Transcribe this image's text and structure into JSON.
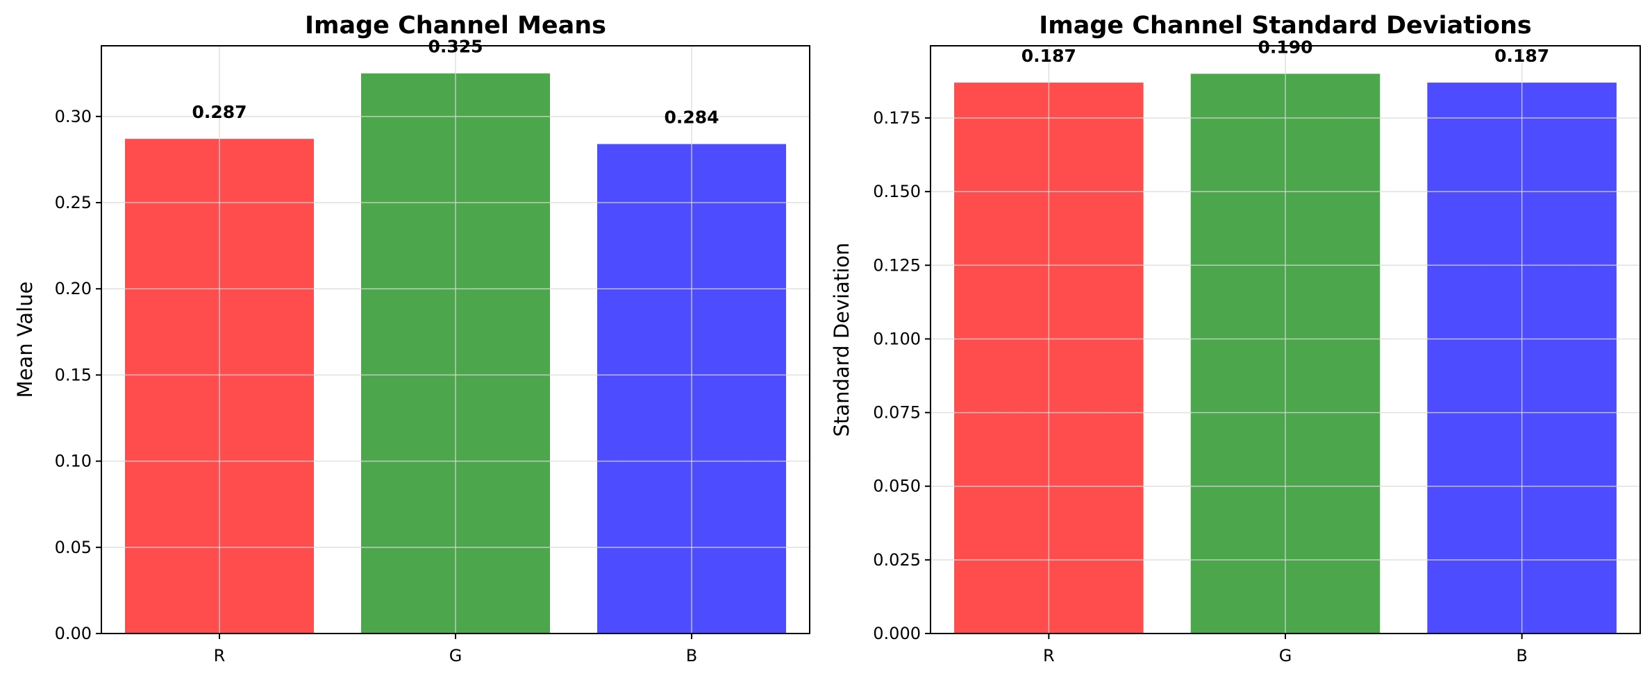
{
  "chart_data": [
    {
      "type": "bar",
      "title": "Image Channel Means",
      "xlabel": "",
      "ylabel": "Mean Value",
      "categories": [
        "R",
        "G",
        "B"
      ],
      "values": [
        0.287,
        0.325,
        0.284
      ],
      "value_labels": [
        "0.287",
        "0.325",
        "0.284"
      ],
      "colors": [
        "#ff4d4d",
        "#4ca64c",
        "#4d4dff"
      ],
      "ylim": [
        0,
        0.341
      ],
      "yticks": [
        0,
        0.05,
        0.1,
        0.15,
        0.2,
        0.25,
        0.3
      ],
      "ytick_labels": [
        "0.00",
        "0.05",
        "0.10",
        "0.15",
        "0.20",
        "0.25",
        "0.30"
      ],
      "grid": true
    },
    {
      "type": "bar",
      "title": "Image Channel Standard Deviations",
      "xlabel": "",
      "ylabel": "Standard Deviation",
      "categories": [
        "R",
        "G",
        "B"
      ],
      "values": [
        0.187,
        0.19,
        0.187
      ],
      "value_labels": [
        "0.187",
        "0.190",
        "0.187"
      ],
      "colors": [
        "#ff4d4d",
        "#4ca64c",
        "#4d4dff"
      ],
      "ylim": [
        0,
        0.1995
      ],
      "yticks": [
        0,
        0.025,
        0.05,
        0.075,
        0.1,
        0.125,
        0.15,
        0.175
      ],
      "ytick_labels": [
        "0.000",
        "0.025",
        "0.050",
        "0.075",
        "0.100",
        "0.125",
        "0.150",
        "0.175"
      ],
      "grid": true
    }
  ]
}
